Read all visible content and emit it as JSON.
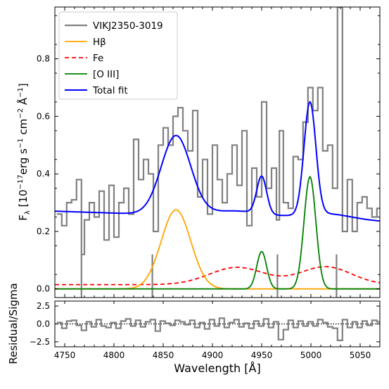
{
  "chart_data": [
    {
      "type": "line",
      "panel": "main",
      "ylabel": "Fλ [10⁻¹⁷erg s⁻¹ cm⁻² Å⁻¹]",
      "xlim": [
        4740,
        5070
      ],
      "ylim": [
        -0.03,
        0.98
      ],
      "yticks": [
        "0.0",
        "0.2",
        "0.4",
        "0.6",
        "0.8"
      ],
      "grid": false,
      "legend_position": "top-left",
      "legend": [
        "VIKJ2350-3019",
        "Hβ",
        "Fe",
        "[O III]",
        "Total fit"
      ],
      "colors": {
        "spectrum": "#808080",
        "hbeta": "#FFA500",
        "fe": "#FF0000",
        "oiii": "#008000",
        "total": "#0000FF",
        "zero": "#000000"
      },
      "series": [
        {
          "name": "VIKJ2350-3019",
          "x": [
            4742,
            4747,
            4752,
            4757,
            4762,
            4767,
            4770,
            4775,
            4780,
            4785,
            4790,
            4795,
            4800,
            4805,
            4810,
            4815,
            4820,
            4825,
            4830,
            4835,
            4840,
            4845,
            4850,
            4855,
            4860,
            4865,
            4870,
            4875,
            4880,
            4885,
            4890,
            4895,
            4900,
            4905,
            4910,
            4915,
            4920,
            4925,
            4930,
            4935,
            4940,
            4945,
            4950,
            4955,
            4960,
            4965,
            4968,
            4972,
            4977,
            4982,
            4987,
            4992,
            4997,
            5002,
            5007,
            5012,
            5017,
            5022,
            5027,
            5032,
            5037,
            5042,
            5047,
            5052,
            5057,
            5062,
            5067
          ],
          "y": [
            0.26,
            0.22,
            0.3,
            0.31,
            0.38,
            0.12,
            0.24,
            0.3,
            0.25,
            0.34,
            0.17,
            0.36,
            0.18,
            0.3,
            0.35,
            0.26,
            0.52,
            0.38,
            0.45,
            0.4,
            0.2,
            0.5,
            0.56,
            0.5,
            0.6,
            0.63,
            0.55,
            0.48,
            0.62,
            0.32,
            0.45,
            0.26,
            0.5,
            0.38,
            0.3,
            0.4,
            0.5,
            0.36,
            0.55,
            0.22,
            0.42,
            0.32,
            0.65,
            0.35,
            0.42,
            0.24,
            0.55,
            0.3,
            0.28,
            0.46,
            0.45,
            0.58,
            0.7,
            0.62,
            0.7,
            0.48,
            0.5,
            0.35,
            0.98,
            0.2,
            0.38,
            0.2,
            0.3,
            0.32,
            0.28,
            0.25,
            0.28
          ]
        },
        {
          "name": "Hβ",
          "model": "gaussian",
          "amplitude": 0.275,
          "center": 4863,
          "sigma": 15
        },
        {
          "name": "Fe",
          "model": "two-gaussian-plus-constant",
          "baseline": 0.015,
          "components": [
            {
              "amplitude": 0.06,
              "center": 4925,
              "sigma": 28
            },
            {
              "amplitude": 0.062,
              "center": 5015,
              "sigma": 26
            }
          ]
        },
        {
          "name": "[O III]",
          "model": "two-gaussian",
          "components": [
            {
              "amplitude": 0.13,
              "center": 4950,
              "sigma": 5
            },
            {
              "amplitude": 0.39,
              "center": 4999,
              "sigma": 6
            }
          ]
        },
        {
          "name": "Total fit",
          "model": "continuum-plus-components",
          "continuum": {
            "start": 0.265,
            "slope_per_A": -0.00011,
            "ref_x": 4740
          },
          "includes": [
            "Hβ",
            "Fe",
            "[O III]"
          ]
        }
      ]
    },
    {
      "type": "line",
      "panel": "residual",
      "xlabel": "Wavelength [Å]",
      "ylabel": "Residual/Sigma",
      "xlim": [
        4740,
        5070
      ],
      "ylim": [
        -3.2,
        3.2
      ],
      "xticks": [
        "4750",
        "4800",
        "4850",
        "4900",
        "4950",
        "5000",
        "5050"
      ],
      "yticks": [
        "−2.5",
        "0.0",
        "2.5"
      ],
      "series": [
        {
          "name": "residual",
          "x": [
            4742,
            4747,
            4752,
            4757,
            4762,
            4767,
            4772,
            4777,
            4782,
            4787,
            4792,
            4797,
            4802,
            4807,
            4812,
            4817,
            4822,
            4827,
            4832,
            4837,
            4842,
            4847,
            4852,
            4857,
            4862,
            4867,
            4872,
            4877,
            4882,
            4887,
            4892,
            4897,
            4902,
            4907,
            4912,
            4917,
            4922,
            4927,
            4932,
            4937,
            4942,
            4947,
            4952,
            4957,
            4962,
            4967,
            4972,
            4977,
            4982,
            4987,
            4992,
            4997,
            5002,
            5007,
            5012,
            5017,
            5022,
            5027,
            5032,
            5037,
            5042,
            5047,
            5052,
            5057,
            5062,
            5067
          ],
          "y": [
            0.2,
            -0.6,
            0.4,
            0.5,
            -0.2,
            -0.9,
            0.3,
            -0.4,
            0.6,
            -0.3,
            -0.5,
            0.2,
            -0.6,
            0.4,
            0.7,
            -0.3,
            0.5,
            -0.4,
            0.3,
            0.6,
            -1.0,
            0.4,
            0.1,
            -0.2,
            0.5,
            0.3,
            -0.1,
            0.5,
            -0.5,
            0.2,
            -0.7,
            0.6,
            -0.3,
            0.8,
            -0.5,
            0.2,
            0.6,
            -0.4,
            0.1,
            -0.6,
            0.4,
            -0.3,
            0.7,
            -0.5,
            0.3,
            -2.2,
            -0.8,
            0.5,
            -0.5,
            0.4,
            -0.3,
            0.3,
            -0.3,
            0.6,
            0.2,
            -0.4,
            -0.6,
            -2.3,
            0.6,
            -0.5,
            0.3,
            -0.5,
            0.4,
            -0.2,
            0.5,
            0.3
          ]
        }
      ]
    }
  ]
}
